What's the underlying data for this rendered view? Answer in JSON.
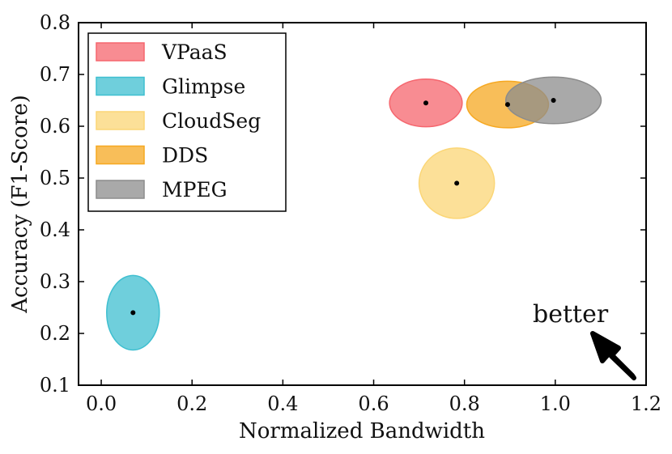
{
  "chart_data": {
    "type": "scatter",
    "title": "",
    "xlabel": "Normalized Bandwidth",
    "ylabel": "Accuracy (F1-Score)",
    "xlim": [
      -0.05,
      1.2
    ],
    "ylim": [
      0.1,
      0.8
    ],
    "xticks": [
      "0.0",
      "0.2",
      "0.4",
      "0.6",
      "0.8",
      "1.0",
      "1.2"
    ],
    "yticks": [
      "0.1",
      "0.2",
      "0.3",
      "0.4",
      "0.5",
      "0.6",
      "0.7",
      "0.8"
    ],
    "legend_position": "top-left",
    "grid": false,
    "series": [
      {
        "name": "VPaaS",
        "x": 0.715,
        "y": 0.645,
        "x_spread": 0.08,
        "y_spread": 0.046,
        "color": "#f5666e"
      },
      {
        "name": "Glimpse",
        "x": 0.07,
        "y": 0.24,
        "x_spread": 0.058,
        "y_spread": 0.072,
        "color": "#3fbfd0"
      },
      {
        "name": "CloudSeg",
        "x": 0.783,
        "y": 0.49,
        "x_spread": 0.083,
        "y_spread": 0.068,
        "color": "#fbd676"
      },
      {
        "name": "DDS",
        "x": 0.895,
        "y": 0.642,
        "x_spread": 0.09,
        "y_spread": 0.045,
        "color": "#f6a821"
      },
      {
        "name": "MPEG",
        "x": 0.996,
        "y": 0.65,
        "x_spread": 0.105,
        "y_spread": 0.045,
        "color": "#8c8c8c"
      }
    ],
    "annotation": {
      "text": "better",
      "arrow_direction": "down-right-to-up-left"
    }
  }
}
